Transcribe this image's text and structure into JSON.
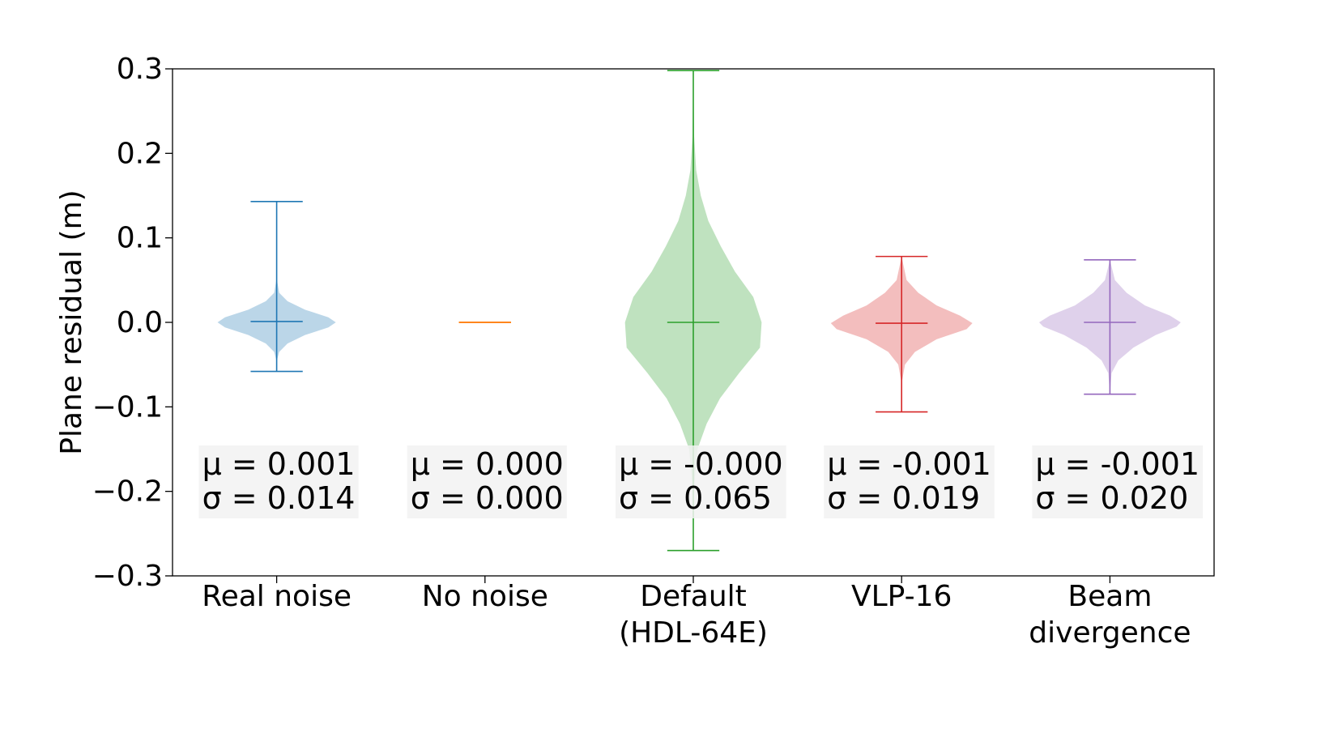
{
  "chart_data": {
    "type": "violin",
    "ylabel": "Plane residual (m)",
    "ylim": [
      -0.3,
      0.3
    ],
    "yticks": [
      {
        "value": 0.3,
        "label": "0.3"
      },
      {
        "value": 0.2,
        "label": "0.2"
      },
      {
        "value": 0.1,
        "label": "0.1"
      },
      {
        "value": 0.0,
        "label": "0.0"
      },
      {
        "value": -0.1,
        "label": "−0.1"
      },
      {
        "value": -0.2,
        "label": "−0.2"
      },
      {
        "value": -0.3,
        "label": "−0.3"
      }
    ],
    "categories": [
      [
        "Real noise"
      ],
      [
        "No noise"
      ],
      [
        "Default",
        "(HDL-64E)"
      ],
      [
        "VLP-16"
      ],
      [
        "Beam",
        "divergence"
      ]
    ],
    "series": [
      {
        "color": "#1f77b4",
        "min": -0.058,
        "max": 0.143,
        "median": 0.001,
        "mean_label": "μ = 0.001",
        "std_label": "σ = 0.014",
        "std": 0.014,
        "profile": [
          [
            -0.058,
            0.0
          ],
          [
            -0.045,
            0.003
          ],
          [
            -0.035,
            0.03
          ],
          [
            -0.025,
            0.13
          ],
          [
            -0.015,
            0.34
          ],
          [
            -0.006,
            0.62
          ],
          [
            0.0,
            0.71
          ],
          [
            0.006,
            0.62
          ],
          [
            0.015,
            0.34
          ],
          [
            0.025,
            0.13
          ],
          [
            0.035,
            0.03
          ],
          [
            0.05,
            0.004
          ],
          [
            0.143,
            0.0
          ]
        ]
      },
      {
        "color": "#ff7f0e",
        "min": 0.0,
        "max": 0.0,
        "median": 0.0,
        "mean_label": "μ = 0.000",
        "std_label": "σ = 0.000",
        "std": 0.0,
        "profile": []
      },
      {
        "color": "#2ca02c",
        "min": -0.27,
        "max": 0.298,
        "median": 0.0,
        "mean_label": "μ = -0.000",
        "std_label": "σ = 0.065",
        "std": 0.065,
        "profile": [
          [
            -0.27,
            0.0
          ],
          [
            -0.2,
            0.005
          ],
          [
            -0.15,
            0.05
          ],
          [
            -0.12,
            0.16
          ],
          [
            -0.09,
            0.32
          ],
          [
            -0.06,
            0.55
          ],
          [
            -0.03,
            0.8
          ],
          [
            0.0,
            0.82
          ],
          [
            0.03,
            0.72
          ],
          [
            0.06,
            0.5
          ],
          [
            0.09,
            0.33
          ],
          [
            0.12,
            0.18
          ],
          [
            0.15,
            0.09
          ],
          [
            0.18,
            0.035
          ],
          [
            0.22,
            0.01
          ],
          [
            0.298,
            0.0
          ]
        ]
      },
      {
        "color": "#d62728",
        "min": -0.106,
        "max": 0.078,
        "median": -0.001,
        "mean_label": "μ = -0.001",
        "std_label": "σ = 0.019",
        "std": 0.019,
        "profile": [
          [
            -0.106,
            0.0
          ],
          [
            -0.07,
            0.005
          ],
          [
            -0.05,
            0.04
          ],
          [
            -0.035,
            0.16
          ],
          [
            -0.02,
            0.42
          ],
          [
            -0.008,
            0.78
          ],
          [
            -0.001,
            0.85
          ],
          [
            0.008,
            0.7
          ],
          [
            0.02,
            0.42
          ],
          [
            0.035,
            0.2
          ],
          [
            0.05,
            0.06
          ],
          [
            0.078,
            0.0
          ]
        ]
      },
      {
        "color": "#9467bd",
        "min": -0.085,
        "max": 0.074,
        "median": 0.0,
        "mean_label": "μ = -0.001",
        "std_label": "σ = 0.020",
        "std": 0.02,
        "profile": [
          [
            -0.085,
            0.0
          ],
          [
            -0.06,
            0.02
          ],
          [
            -0.045,
            0.1
          ],
          [
            -0.03,
            0.28
          ],
          [
            -0.015,
            0.55
          ],
          [
            -0.005,
            0.8
          ],
          [
            0.0,
            0.85
          ],
          [
            0.008,
            0.72
          ],
          [
            0.02,
            0.42
          ],
          [
            0.035,
            0.2
          ],
          [
            0.05,
            0.06
          ],
          [
            0.074,
            0.0
          ]
        ]
      }
    ]
  }
}
